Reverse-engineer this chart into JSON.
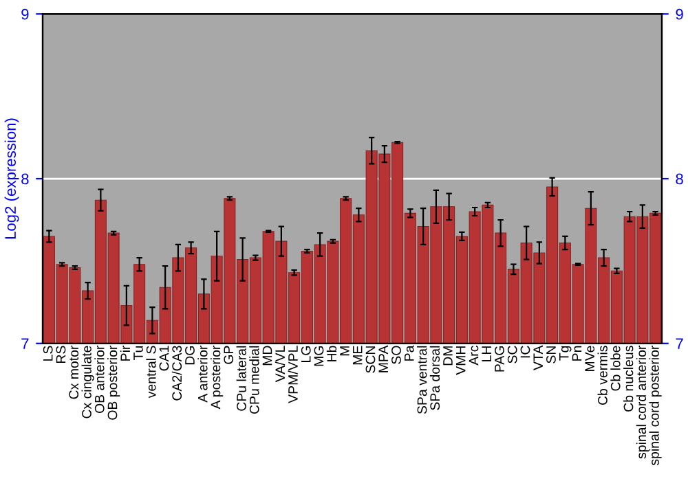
{
  "chart_data": {
    "type": "bar",
    "ylabel": "Log2 (expression)",
    "categories": [
      "LS",
      "RS",
      "Cx motor",
      "Cx cingulate",
      "OB anterior",
      "OB posterior",
      "Pir",
      "Tu",
      "ventral S",
      "CA1",
      "CA2/CA3",
      "DG",
      "A anterior",
      "A posterior",
      "GP",
      "CPu lateral",
      "CPu medial",
      "MD",
      "VA/VL",
      "VPM/VPL",
      "LG",
      "MG",
      "Hb",
      "M",
      "ME",
      "SCN",
      "MPA",
      "SO",
      "Pa",
      "SPa ventral",
      "SPa dorsal",
      "DM",
      "VMH",
      "Arc",
      "LH",
      "PAG",
      "SC",
      "IC",
      "VTA",
      "SN",
      "Tg",
      "Pn",
      "MVe",
      "Cb vermis",
      "Cb lobe",
      "Cb nucleus",
      "spinal cord anterior",
      "spinal cord posterior"
    ],
    "values": [
      7.65,
      7.48,
      7.46,
      7.32,
      7.87,
      7.67,
      7.23,
      7.48,
      7.14,
      7.34,
      7.52,
      7.58,
      7.3,
      7.53,
      7.88,
      7.51,
      7.52,
      7.68,
      7.62,
      7.43,
      7.56,
      7.6,
      7.62,
      7.88,
      7.78,
      8.17,
      8.15,
      8.22,
      7.79,
      7.71,
      7.83,
      7.83,
      7.65,
      7.8,
      7.84,
      7.67,
      7.45,
      7.61,
      7.55,
      7.95,
      7.61,
      7.48,
      7.82,
      7.52,
      7.44,
      7.77,
      7.77,
      7.79
    ],
    "errors": [
      0.035,
      0.01,
      0.01,
      0.05,
      0.065,
      0.01,
      0.12,
      0.04,
      0.08,
      0.13,
      0.08,
      0.035,
      0.09,
      0.15,
      0.01,
      0.13,
      0.015,
      0.005,
      0.09,
      0.015,
      0.01,
      0.07,
      0.01,
      0.01,
      0.04,
      0.08,
      0.05,
      0.005,
      0.025,
      0.11,
      0.1,
      0.08,
      0.025,
      0.025,
      0.015,
      0.08,
      0.03,
      0.1,
      0.065,
      0.055,
      0.04,
      0.005,
      0.1,
      0.05,
      0.015,
      0.03,
      0.07,
      0.01
    ],
    "color": "#b83434",
    "ylim": [
      7,
      9
    ],
    "yticks": [
      7,
      8,
      9
    ],
    "y2lim": [
      7,
      9
    ],
    "y2ticks": [
      7,
      8,
      9
    ],
    "grid": "y"
  }
}
